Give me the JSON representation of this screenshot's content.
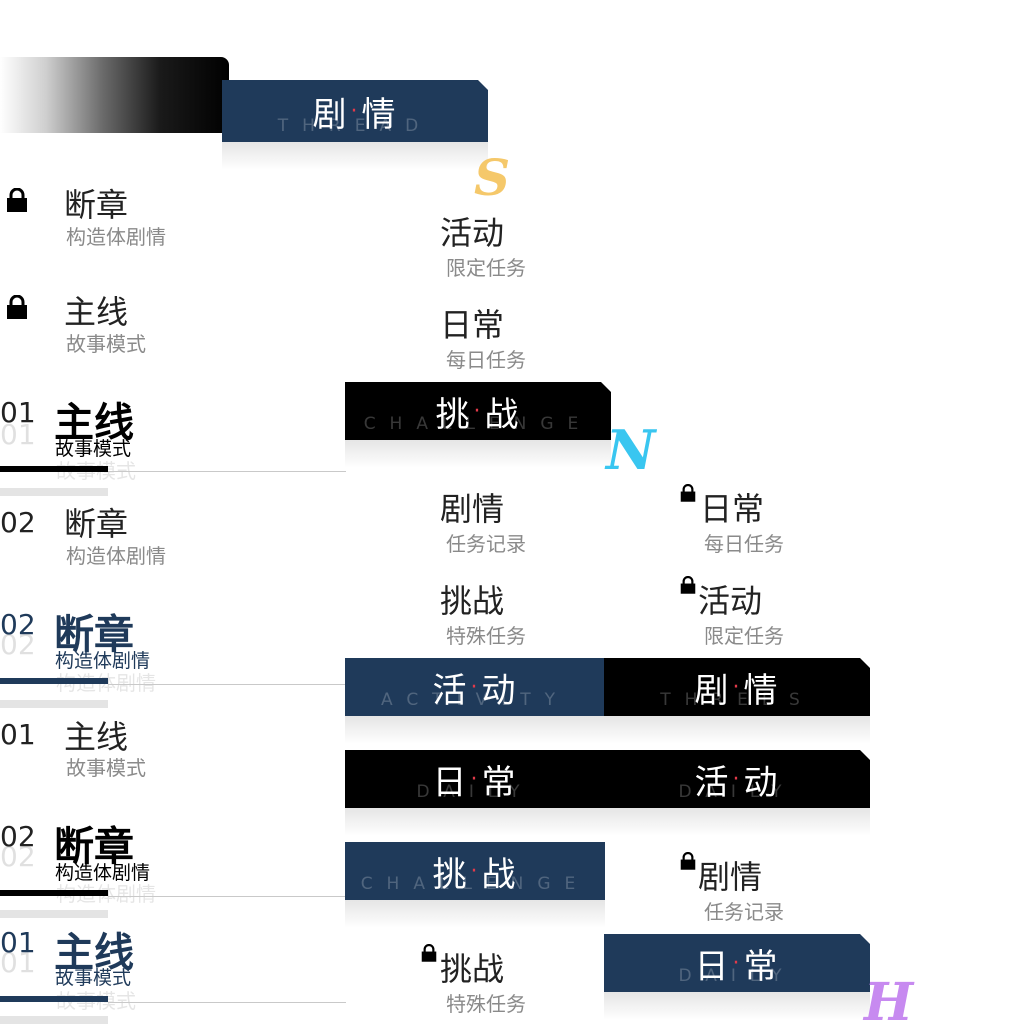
{
  "tabs": {
    "thread_top": {
      "zh1": "剧",
      "zh2": "情",
      "en": "THREAD"
    },
    "challenge_1": {
      "zh1": "挑",
      "zh2": "战",
      "en": "CHALLENGE"
    },
    "activity_1": {
      "zh1": "活",
      "zh2": "动",
      "en": "ACTIVITY"
    },
    "threads_1": {
      "zh1": "剧",
      "zh2": "情",
      "en": "THREDS"
    },
    "daily_1": {
      "zh1": "日",
      "zh2": "常",
      "en": "DAILY"
    },
    "daily_2": {
      "zh1": "活",
      "zh2": "动",
      "en": "DAILY"
    },
    "challenge_2": {
      "zh1": "挑",
      "zh2": "战",
      "en": "CHALLENGE"
    },
    "daily_3": {
      "zh1": "日",
      "zh2": "常",
      "en": "DAILY"
    }
  },
  "left_list": {
    "locked_1": {
      "title": "断章",
      "sub": "构造体剧情"
    },
    "locked_2": {
      "title": "主线",
      "sub": "故事模式"
    },
    "row1": {
      "num": "01",
      "title": "主线",
      "sub": "故事模式"
    },
    "row2": {
      "num": "02",
      "title": "断章",
      "sub": "构造体剧情"
    },
    "row3": {
      "num": "02",
      "title": "断章",
      "sub": "构造体剧情"
    },
    "row4": {
      "num": "01",
      "title": "主线",
      "sub": "故事模式"
    },
    "row5": {
      "num": "02",
      "title": "断章",
      "sub": "构造体剧情"
    },
    "row6": {
      "num": "01",
      "title": "主线",
      "sub": "故事模式"
    }
  },
  "mid_list": {
    "activity": {
      "title": "活动",
      "sub": "限定任务"
    },
    "daily": {
      "title": "日常",
      "sub": "每日任务"
    },
    "story": {
      "title": "剧情",
      "sub": "任务记录"
    },
    "challenge": {
      "title": "挑战",
      "sub": "特殊任务"
    },
    "challenge_locked": {
      "title": "挑战",
      "sub": "特殊任务"
    }
  },
  "right_list": {
    "daily_locked": {
      "title": "日常",
      "sub": "每日任务"
    },
    "activity_locked": {
      "title": "活动",
      "sub": "限定任务"
    },
    "story_locked": {
      "title": "剧情",
      "sub": "任务记录"
    }
  },
  "icons": {
    "s": "S",
    "n": "N",
    "h": "H"
  },
  "colors": {
    "navy": "#1f3a5a",
    "black": "#000000",
    "accent_dot": "#e23a4a",
    "s_icon": "#f5c86a",
    "n_icon": "#39c6f0",
    "h_icon": "#c78af0"
  }
}
